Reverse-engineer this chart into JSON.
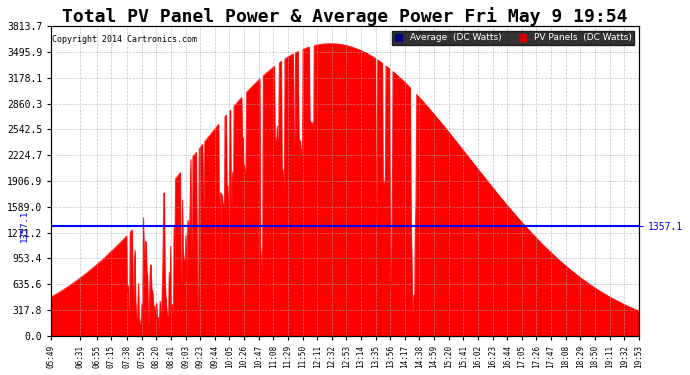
{
  "title": "Total PV Panel Power & Average Power Fri May 9 19:54",
  "copyright": "Copyright 2014 Cartronics.com",
  "average_value": 1357.1,
  "ymax": 3813.7,
  "ymin": 0.0,
  "yticks": [
    0.0,
    317.8,
    635.6,
    953.4,
    1271.2,
    1589.0,
    1906.9,
    2224.7,
    2542.5,
    2860.3,
    3178.1,
    3495.9,
    3813.7
  ],
  "pv_color": "#ff0000",
  "avg_color": "#0000ff",
  "background_color": "#ffffff",
  "grid_color": "#aaaaaa",
  "legend_avg_bg": "#000080",
  "legend_pv_bg": "#cc0000",
  "title_fontsize": 13,
  "x_tick_labels": [
    "05:49",
    "06:31",
    "06:55",
    "07:15",
    "07:38",
    "07:59",
    "08:20",
    "08:41",
    "09:03",
    "09:23",
    "09:44",
    "10:05",
    "10:26",
    "10:47",
    "11:08",
    "11:29",
    "11:50",
    "12:11",
    "12:32",
    "12:53",
    "13:14",
    "13:35",
    "13:56",
    "14:17",
    "14:38",
    "14:59",
    "15:20",
    "15:41",
    "16:02",
    "16:23",
    "16:44",
    "17:05",
    "17:26",
    "17:47",
    "18:08",
    "18:29",
    "18:50",
    "19:11",
    "19:32",
    "19:53"
  ]
}
